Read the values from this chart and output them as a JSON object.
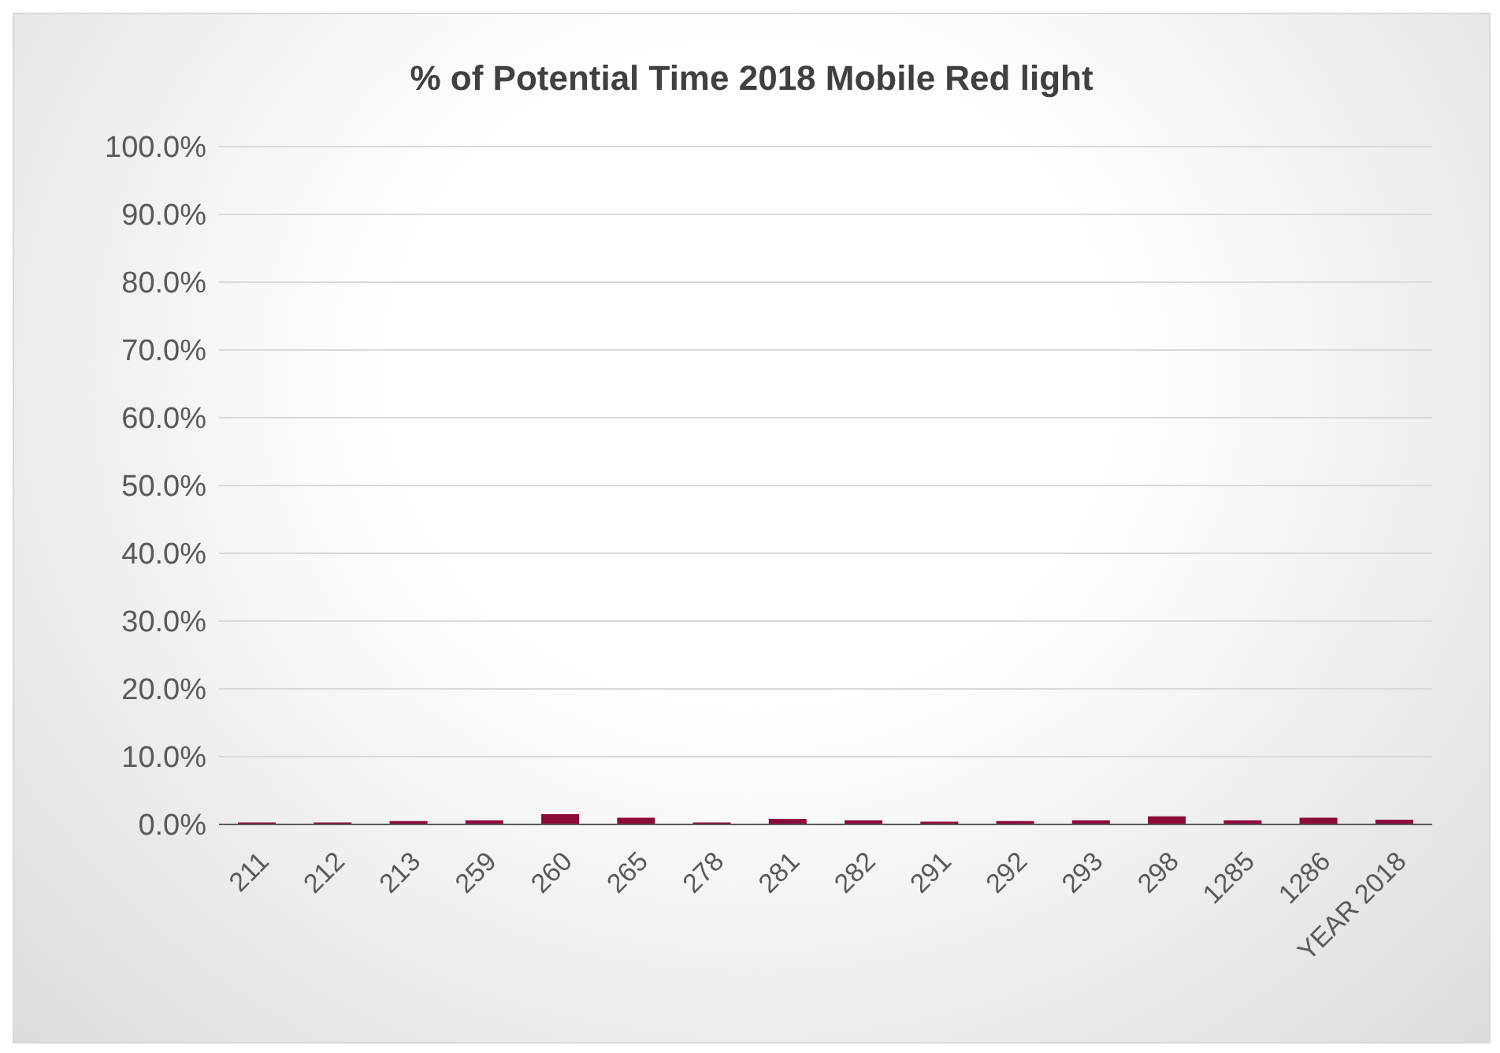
{
  "chart_data": {
    "type": "bar",
    "title": "% of Potential Time 2018 Mobile Red light",
    "categories": [
      "211",
      "212",
      "213",
      "259",
      "260",
      "265",
      "278",
      "281",
      "282",
      "291",
      "292",
      "293",
      "298",
      "1285",
      "1286",
      "YEAR 2018"
    ],
    "values": [
      0.3,
      0.3,
      0.5,
      0.6,
      1.5,
      1.0,
      0.3,
      0.8,
      0.6,
      0.4,
      0.5,
      0.6,
      1.2,
      0.6,
      1.0,
      0.7
    ],
    "color": "#8b0a3a",
    "ylim": [
      0,
      100
    ],
    "yticks": [
      {
        "value": 0,
        "label": "0.0%"
      },
      {
        "value": 10,
        "label": "10.0%"
      },
      {
        "value": 20,
        "label": "20.0%"
      },
      {
        "value": 30,
        "label": "30.0%"
      },
      {
        "value": 40,
        "label": "40.0%"
      },
      {
        "value": 50,
        "label": "50.0%"
      },
      {
        "value": 60,
        "label": "60.0%"
      },
      {
        "value": 70,
        "label": "70.0%"
      },
      {
        "value": 80,
        "label": "80.0%"
      },
      {
        "value": 90,
        "label": "90.0%"
      },
      {
        "value": 100,
        "label": "100.0%"
      }
    ],
    "grid": "y"
  }
}
